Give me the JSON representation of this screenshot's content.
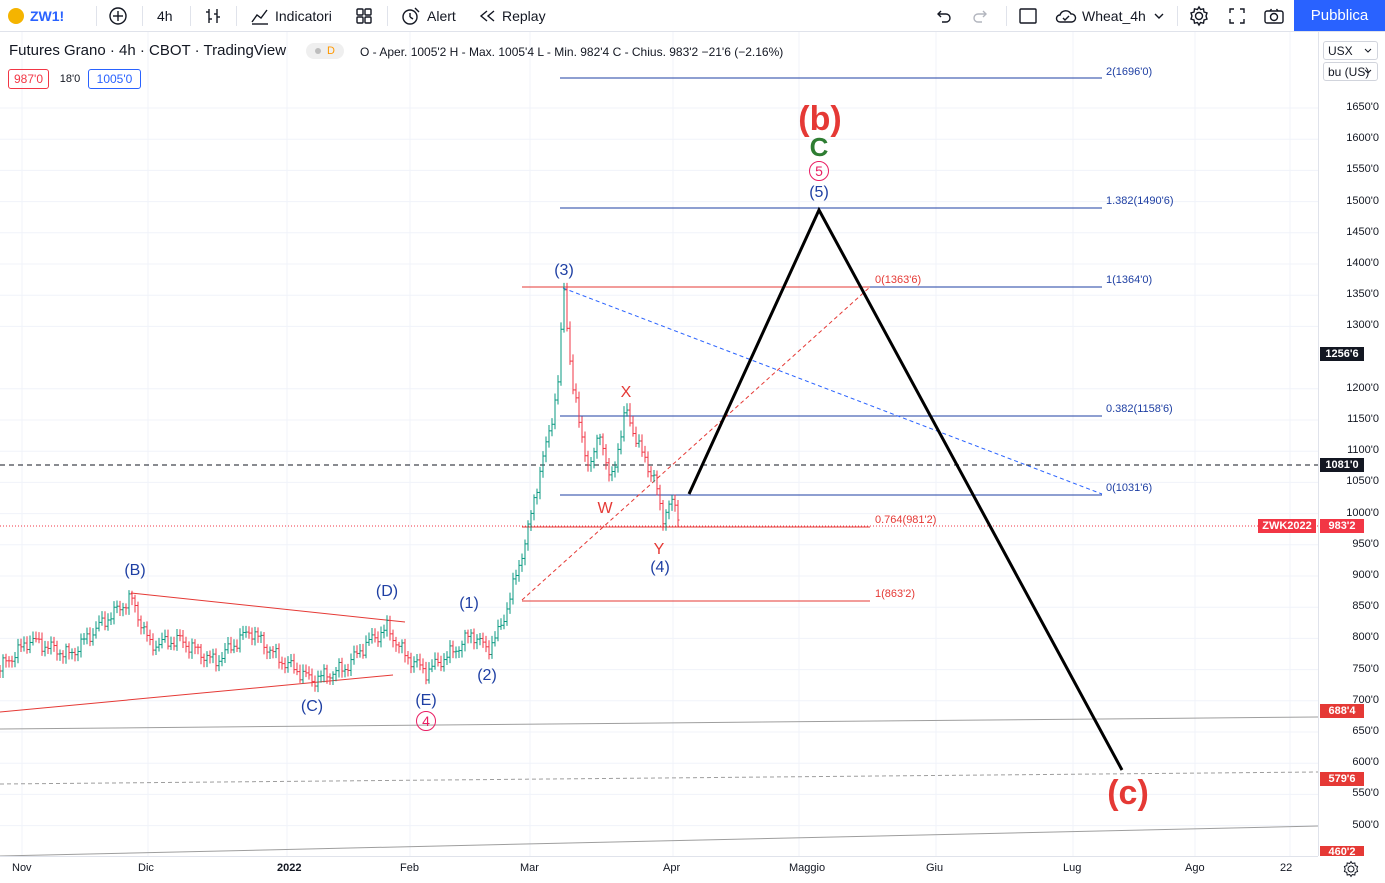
{
  "toolbar": {
    "symbol": "ZW1!",
    "interval": "4h",
    "indicators_label": "Indicatori",
    "alert_label": "Alert",
    "replay_label": "Replay",
    "layout_name": "Wheat_4h",
    "publish_label": "Pubblica"
  },
  "legend": {
    "title": "Futures Grano · 4h · CBOT · TradingView",
    "delay_badge": "D",
    "ohlc_text": "O - Aper. 1005'2  H - Max. 1005'4  L - Min. 982'4  C - Chius. 983'2  −21'6 (−2.16%)",
    "bid": "987'0",
    "spread": "18'0",
    "ask": "1005'0"
  },
  "price_scale": {
    "currency": "USX",
    "unit": "bu (US)",
    "ticks": [
      "1650'0",
      "1600'0",
      "1550'0",
      "1500'0",
      "1450'0",
      "1400'0",
      "1350'0",
      "1300'0",
      "1200'0",
      "1150'0",
      "1100'0",
      "1050'0",
      "1000'0",
      "950'0",
      "900'0",
      "850'0",
      "800'0",
      "750'0",
      "700'0",
      "650'0",
      "600'0",
      "550'0",
      "500'0"
    ],
    "badges": {
      "cursor_price": "1256'6",
      "hline_price": "1081'0",
      "contract": "ZWK2022",
      "last_price": "983'2",
      "level_1": "688'4",
      "level_2": "579'6",
      "level_3": "460'2"
    }
  },
  "time_scale": {
    "labels": [
      "Nov",
      "Dic",
      "2022",
      "Feb",
      "Mar",
      "Apr",
      "Maggio",
      "Giu",
      "Lug",
      "Ago",
      "22"
    ]
  },
  "annotations": {
    "wave_b_big": "(b)",
    "wave_c_green": "C",
    "circled_5": "5",
    "wave_5": "(5)",
    "wave_3": "(3)",
    "wave_4": "(4)",
    "wave_1": "(1)",
    "wave_2": "(2)",
    "wave_B": "(B)",
    "wave_C": "(C)",
    "wave_D": "(D)",
    "wave_E": "(E)",
    "circled_4": "4",
    "wave_X": "X",
    "wave_W": "W",
    "wave_Y": "Y",
    "wave_c_big": "(c)"
  },
  "fib_levels": {
    "ext_2": "2(1696'0)",
    "ext_1382": "1.382(1490'6)",
    "ext_1": "1(1364'0)",
    "ext_0382": "0.382(1158'6)",
    "ext_0": "0(1031'6)",
    "retr_0": "0(1363'6)",
    "retr_0764": "0.764(981'2)",
    "retr_1": "1(863'2)"
  },
  "colors": {
    "accent": "#2962ff",
    "fib_blue": "#1e3fa3",
    "fib_red": "#e53935",
    "up": "#089981",
    "down": "#f23645",
    "wave_green": "#2e7d32"
  }
}
